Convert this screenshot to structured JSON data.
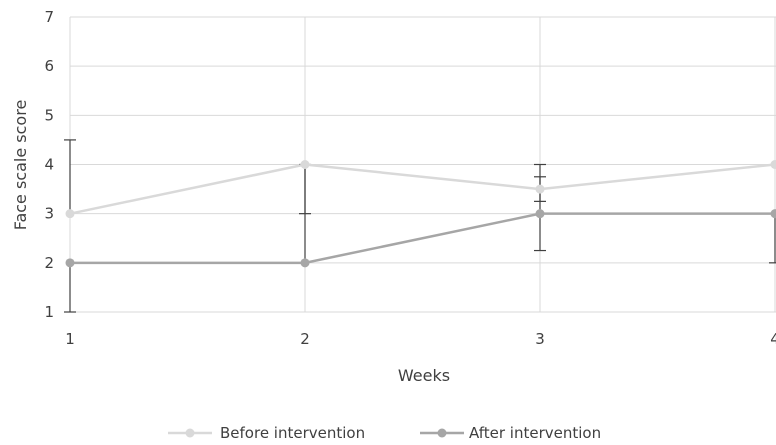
{
  "chart_data": {
    "type": "line",
    "title": "",
    "xlabel": "Weeks",
    "ylabel": "Face scale score",
    "categories": [
      "1",
      "2",
      "3",
      "4"
    ],
    "ylim": [
      1,
      7
    ],
    "y_ticks": [
      "1",
      "2",
      "3",
      "4",
      "5",
      "6",
      "7"
    ],
    "grid": true,
    "legend_position": "bottom",
    "series": [
      {
        "name": "Before intervention",
        "color": "#d9d9d9",
        "values": [
          3,
          4,
          3.5,
          4
        ],
        "error_plus": [
          1.5,
          0,
          0.5,
          0
        ],
        "error_minus": [
          0,
          1,
          0.25,
          0
        ]
      },
      {
        "name": "After intervention",
        "color": "#a6a6a6",
        "values": [
          2,
          2,
          3,
          3
        ],
        "error_plus": [
          0,
          2,
          0.75,
          0
        ],
        "error_minus": [
          1,
          0,
          0.75,
          1
        ]
      }
    ]
  }
}
